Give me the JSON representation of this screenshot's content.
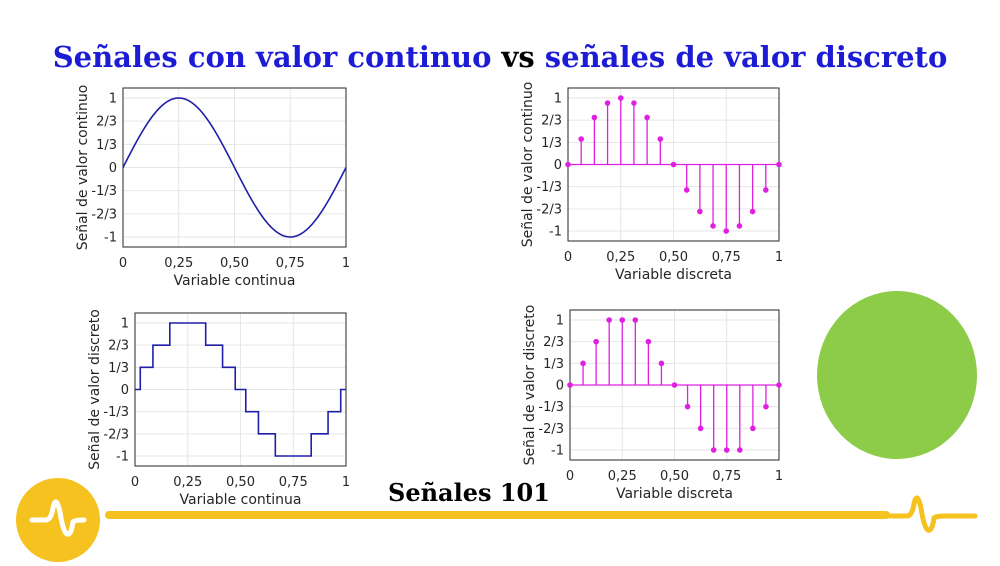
{
  "title": {
    "part1": "Señales con valor continuo",
    "part2": " vs ",
    "part3": "señales de valor discreto"
  },
  "brand": "Señales 101",
  "colors": {
    "title_blue": "#1c1cd6",
    "line_color": "#1f1fa8",
    "stem_color": "#e020e0",
    "accent_yellow": "#f5c220",
    "green": "#8ccc48"
  },
  "icons": [
    "signal-wave-logo-icon",
    "signal-wave-icon"
  ],
  "chart_data": [
    {
      "id": "tl",
      "type": "line",
      "title": "",
      "xlabel": "Variable continua",
      "ylabel": "Señal de valor continuo",
      "xlim": [
        0,
        1
      ],
      "ylim": [
        -1,
        1
      ],
      "x_ticks": [
        "0",
        "0,25",
        "0,50",
        "0,75",
        "1"
      ],
      "y_ticks": [
        "1",
        "2/3",
        "1/3",
        "0",
        "-1/3",
        "-2/3",
        "-1"
      ],
      "grid": true,
      "signal": "sin(2*pi*x)",
      "x": [
        0,
        0.05,
        0.1,
        0.15,
        0.2,
        0.25,
        0.3,
        0.35,
        0.4,
        0.45,
        0.5,
        0.55,
        0.6,
        0.65,
        0.7,
        0.75,
        0.8,
        0.85,
        0.9,
        0.95,
        1
      ],
      "y": [
        0,
        0.309,
        0.588,
        0.809,
        0.951,
        1,
        0.951,
        0.809,
        0.588,
        0.309,
        0,
        -0.309,
        -0.588,
        -0.809,
        -0.951,
        -1,
        -0.951,
        -0.809,
        -0.588,
        -0.309,
        0
      ]
    },
    {
      "id": "tr",
      "type": "stem",
      "title": "",
      "xlabel": "Variable discreta",
      "ylabel": "Señal de valor continuo",
      "xlim": [
        0,
        1
      ],
      "ylim": [
        -1,
        1
      ],
      "x_ticks": [
        "0",
        "0,25",
        "0,50",
        "0,75",
        "1"
      ],
      "y_ticks": [
        "1",
        "2/3",
        "1/3",
        "0",
        "-1/3",
        "-2/3",
        "-1"
      ],
      "grid": true,
      "x": [
        0,
        0.0625,
        0.125,
        0.1875,
        0.25,
        0.3125,
        0.375,
        0.4375,
        0.5,
        0.5625,
        0.625,
        0.6875,
        0.75,
        0.8125,
        0.875,
        0.9375,
        1
      ],
      "y": [
        0,
        0.383,
        0.707,
        0.924,
        1,
        0.924,
        0.707,
        0.383,
        0,
        -0.383,
        -0.707,
        -0.924,
        -1,
        -0.924,
        -0.707,
        -0.383,
        0
      ]
    },
    {
      "id": "bl",
      "type": "step",
      "title": "",
      "xlabel": "Variable continua",
      "ylabel": "Señal de valor discreto",
      "xlim": [
        0,
        1
      ],
      "ylim": [
        -1,
        1
      ],
      "x_ticks": [
        "0",
        "0,25",
        "0,50",
        "0,75",
        "1"
      ],
      "y_ticks": [
        "1",
        "2/3",
        "1/3",
        "0",
        "-1/3",
        "-2/3",
        "-1"
      ],
      "grid": true,
      "x": [
        0,
        0.025,
        0.085,
        0.165,
        0.335,
        0.415,
        0.475,
        0.525,
        0.585,
        0.665,
        0.835,
        0.915,
        0.975,
        1
      ],
      "y": [
        0,
        0.333,
        0.667,
        1,
        0.667,
        0.333,
        0,
        -0.333,
        -0.667,
        -1,
        -0.667,
        -0.333,
        0,
        0
      ]
    },
    {
      "id": "br",
      "type": "stem",
      "title": "",
      "xlabel": "Variable discreta",
      "ylabel": "Señal de valor discreto",
      "xlim": [
        0,
        1
      ],
      "ylim": [
        -1,
        1
      ],
      "x_ticks": [
        "0",
        "0,25",
        "0,50",
        "0,75",
        "1"
      ],
      "y_ticks": [
        "1",
        "2/3",
        "1/3",
        "0",
        "-1/3",
        "-2/3",
        "-1"
      ],
      "grid": true,
      "x": [
        0,
        0.0625,
        0.125,
        0.1875,
        0.25,
        0.3125,
        0.375,
        0.4375,
        0.5,
        0.5625,
        0.625,
        0.6875,
        0.75,
        0.8125,
        0.875,
        0.9375,
        1
      ],
      "y": [
        0,
        0.333,
        0.667,
        1,
        1,
        1,
        0.667,
        0.333,
        0,
        -0.333,
        -0.667,
        -1,
        -1,
        -1,
        -0.667,
        -0.333,
        0
      ]
    }
  ]
}
